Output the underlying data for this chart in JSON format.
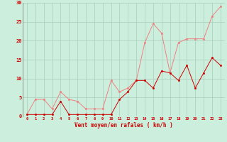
{
  "x": [
    0,
    1,
    2,
    3,
    4,
    5,
    6,
    7,
    8,
    9,
    10,
    11,
    12,
    13,
    14,
    15,
    16,
    17,
    18,
    19,
    20,
    21,
    22,
    23
  ],
  "rafales": [
    0.5,
    4.5,
    4.5,
    2.0,
    6.5,
    4.5,
    4.0,
    2.0,
    2.0,
    2.0,
    9.5,
    6.5,
    7.5,
    9.5,
    19.5,
    24.5,
    22.0,
    11.5,
    19.5,
    20.5,
    20.5,
    20.5,
    26.5,
    29.0
  ],
  "vent_moyen": [
    0.5,
    0.5,
    0.5,
    0.5,
    4.0,
    0.5,
    0.5,
    0.5,
    0.5,
    0.5,
    0.5,
    4.5,
    6.5,
    9.5,
    9.5,
    7.5,
    12.0,
    11.5,
    9.5,
    13.5,
    7.5,
    11.5,
    15.5,
    13.5
  ],
  "color_rafales": "#f08080",
  "color_vent": "#cc0000",
  "bg_color": "#cceedd",
  "grid_color": "#aaccbb",
  "xlabel": "Vent moyen/en rafales ( km/h )",
  "ylim": [
    0,
    30
  ],
  "xlim": [
    -0.5,
    23.5
  ],
  "yticks": [
    0,
    5,
    10,
    15,
    20,
    25,
    30
  ],
  "xticks": [
    0,
    1,
    2,
    3,
    4,
    5,
    6,
    7,
    8,
    9,
    10,
    11,
    12,
    13,
    14,
    15,
    16,
    17,
    18,
    19,
    20,
    21,
    22,
    23
  ],
  "tick_fontsize": 4.0,
  "xlabel_fontsize": 5.5,
  "linewidth": 0.7,
  "markersize": 1.8
}
